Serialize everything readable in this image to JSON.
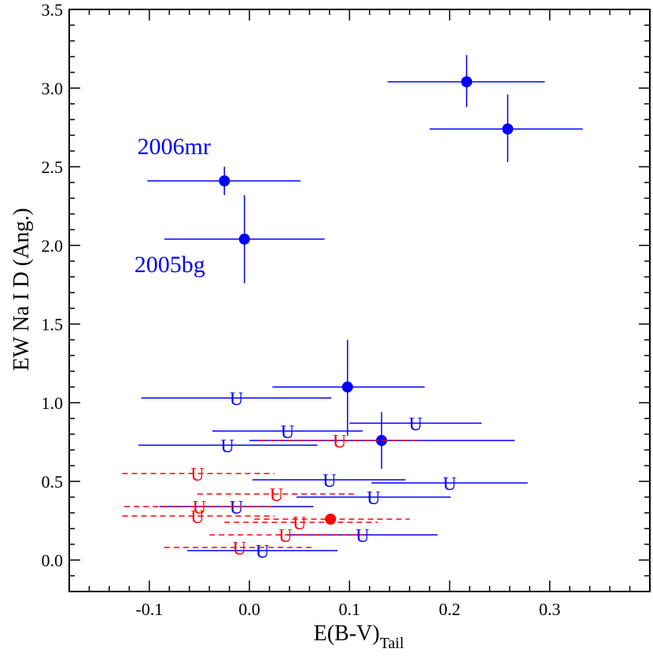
{
  "chart_data": {
    "type": "scatter",
    "xlabel": "E(B-V)",
    "xlabel_sub": "Tail",
    "ylabel": "EW Na I D (Ang.)",
    "xlim": [
      -0.18,
      0.4
    ],
    "ylim": [
      -0.2,
      3.5
    ],
    "x_ticks": [
      -0.1,
      0.0,
      0.1,
      0.2,
      0.3
    ],
    "x_tick_labels": [
      "-0.1",
      "0.0",
      "0.1",
      "0.2",
      "0.3"
    ],
    "y_ticks": [
      0.0,
      0.5,
      1.0,
      1.5,
      2.0,
      2.5,
      3.0,
      3.5
    ],
    "y_tick_labels": [
      "0.0",
      "0.5",
      "1.0",
      "1.5",
      "2.0",
      "2.5",
      "3.0",
      "3.5"
    ],
    "upper_limit_marker": "U",
    "colors": {
      "blue": "#0000ff",
      "red": "#ff0000",
      "axis": "#000000"
    },
    "annotations": [
      {
        "text": "2006mr",
        "x": -0.112,
        "y": 2.58
      },
      {
        "text": "2005bg",
        "x": -0.115,
        "y": 1.83
      }
    ],
    "series": [
      {
        "name": "blue detections",
        "color": "#0000ff",
        "marker": "circle",
        "dashed": false,
        "points": [
          {
            "x": 0.217,
            "y": 3.04,
            "xmin": 0.138,
            "xmax": 0.295,
            "ymin": 2.88,
            "ymax": 3.21
          },
          {
            "x": 0.258,
            "y": 2.74,
            "xmin": 0.18,
            "xmax": 0.333,
            "ymin": 2.53,
            "ymax": 2.96
          },
          {
            "x": -0.025,
            "y": 2.41,
            "xmin": -0.102,
            "xmax": 0.051,
            "ymin": 2.32,
            "ymax": 2.5
          },
          {
            "x": -0.005,
            "y": 2.04,
            "xmin": -0.085,
            "xmax": 0.075,
            "ymin": 1.76,
            "ymax": 2.32
          },
          {
            "x": 0.098,
            "y": 1.1,
            "xmin": 0.023,
            "xmax": 0.175,
            "ymin": 0.79,
            "ymax": 1.4
          },
          {
            "x": 0.132,
            "y": 0.76,
            "xmin": 0.0,
            "xmax": 0.265,
            "ymin": 0.58,
            "ymax": 0.94
          }
        ]
      },
      {
        "name": "blue upper limits",
        "color": "#0000ff",
        "marker": "U",
        "dashed": false,
        "points": [
          {
            "x": -0.013,
            "y": 1.03,
            "xmin": -0.108,
            "xmax": 0.082
          },
          {
            "x": 0.038,
            "y": 0.82,
            "xmin": -0.037,
            "xmax": 0.113
          },
          {
            "x": 0.166,
            "y": 0.87,
            "xmin": 0.1,
            "xmax": 0.232
          },
          {
            "x": -0.022,
            "y": 0.73,
            "xmin": -0.111,
            "xmax": 0.068
          },
          {
            "x": 0.08,
            "y": 0.51,
            "xmin": 0.003,
            "xmax": 0.156
          },
          {
            "x": 0.2,
            "y": 0.49,
            "xmin": 0.122,
            "xmax": 0.278
          },
          {
            "x": 0.124,
            "y": 0.4,
            "xmin": 0.047,
            "xmax": 0.201
          },
          {
            "x": -0.013,
            "y": 0.34,
            "xmin": -0.09,
            "xmax": 0.064
          },
          {
            "x": 0.113,
            "y": 0.16,
            "xmin": 0.038,
            "xmax": 0.188
          },
          {
            "x": 0.013,
            "y": 0.06,
            "xmin": -0.062,
            "xmax": 0.088
          }
        ]
      },
      {
        "name": "red detection",
        "color": "#ff0000",
        "marker": "circle",
        "dashed": true,
        "points": [
          {
            "x": 0.081,
            "y": 0.26,
            "xmin": 0.005,
            "xmax": 0.16
          }
        ]
      },
      {
        "name": "red upper limits",
        "color": "#ff0000",
        "marker": "U",
        "dashed": true,
        "points": [
          {
            "x": 0.09,
            "y": 0.76,
            "xmin": 0.01,
            "xmax": 0.172
          },
          {
            "x": -0.052,
            "y": 0.55,
            "xmin": -0.127,
            "xmax": 0.025
          },
          {
            "x": 0.027,
            "y": 0.42,
            "xmin": -0.052,
            "xmax": 0.105
          },
          {
            "x": -0.05,
            "y": 0.34,
            "xmin": -0.125,
            "xmax": 0.025
          },
          {
            "x": -0.052,
            "y": 0.28,
            "xmin": -0.127,
            "xmax": 0.025
          },
          {
            "x": 0.05,
            "y": 0.24,
            "xmin": -0.025,
            "xmax": 0.128
          },
          {
            "x": 0.036,
            "y": 0.16,
            "xmin": -0.04,
            "xmax": 0.114
          },
          {
            "x": -0.01,
            "y": 0.08,
            "xmin": -0.085,
            "xmax": 0.065
          }
        ]
      }
    ]
  }
}
